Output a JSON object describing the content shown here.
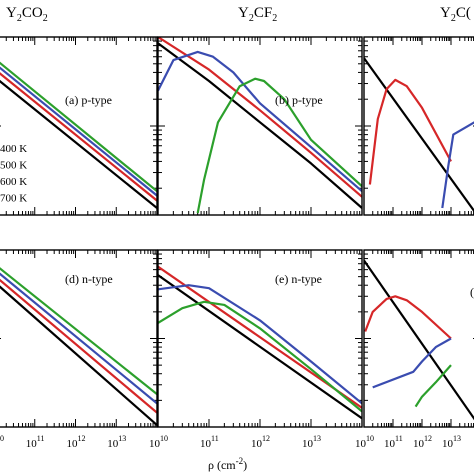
{
  "chart_data": [
    {
      "type": "line",
      "column_title": "Y2CO2",
      "panel_label": "(a) p-type",
      "xlog": true,
      "ylog": true,
      "xlim": [
        10000000000.0,
        100000000000000.0
      ],
      "ylim": [
        1,
        100
      ],
      "legend": {
        "position": "bottom-left",
        "entries": [
          "400 K",
          "500 K",
          "600 K",
          "700 K"
        ]
      },
      "series": [
        {
          "name": "400 K",
          "color": "#000000",
          "x": [
            10000000000.0,
            100000000000000.0
          ],
          "y": [
            36,
            1.2
          ]
        },
        {
          "name": "500 K",
          "color": "#d62728",
          "x": [
            10000000000.0,
            100000000000000.0
          ],
          "y": [
            44,
            1.45
          ]
        },
        {
          "name": "600 K",
          "color": "#3a4cb0",
          "x": [
            10000000000.0,
            100000000000000.0
          ],
          "y": [
            51,
            1.65
          ]
        },
        {
          "name": "700 K",
          "color": "#2ca02c",
          "x": [
            10000000000.0,
            100000000000000.0
          ],
          "y": [
            58,
            1.85
          ]
        }
      ]
    },
    {
      "type": "line",
      "column_title": "Y2CF2",
      "panel_label": "(b) p-type",
      "xlog": true,
      "ylog": true,
      "xlim": [
        10000000000.0,
        100000000000000.0
      ],
      "ylim": [
        1,
        100
      ],
      "series": [
        {
          "name": "400 K",
          "color": "#000000",
          "x": [
            10000000000.0,
            100000000000.0,
            1000000000000.0,
            10000000000000.0,
            100000000000000.0
          ],
          "y": [
            85,
            32,
            11,
            3.8,
            1.2
          ]
        },
        {
          "name": "500 K",
          "color": "#d62728",
          "x": [
            10000000000.0,
            100000000000.0,
            1000000000000.0,
            10000000000000.0,
            100000000000000.0
          ],
          "y": [
            100,
            43,
            15,
            5,
            1.6
          ]
        },
        {
          "name": "600 K",
          "color": "#3a4cb0",
          "x": [
            10000000000.0,
            20000000000.0,
            60000000000.0,
            120000000000.0,
            300000000000.0,
            1000000000000.0,
            10000000000000.0,
            100000000000000.0
          ],
          "y": [
            25,
            55,
            68,
            60,
            40,
            18,
            5.8,
            1.85
          ]
        },
        {
          "name": "700 K",
          "color": "#2ca02c",
          "x": [
            60000000000.0,
            80000000000.0,
            150000000000.0,
            400000000000.0,
            800000000000.0,
            1200000000000.0,
            3000000000000.0,
            10000000000000.0,
            100000000000000.0
          ],
          "y": [
            1.05,
            2.5,
            11,
            28,
            34,
            32,
            20,
            7,
            2.1
          ]
        }
      ]
    },
    {
      "type": "line",
      "column_title": "Y2C(",
      "panel_label": "",
      "xlog": true,
      "ylog": true,
      "xlim": [
        10000000000.0,
        100000000000000.0
      ],
      "ylim": [
        1,
        100
      ],
      "series": [
        {
          "name": "400 K",
          "color": "#000000",
          "x": [
            10000000000.0,
            100000000000000.0
          ],
          "y": [
            58,
            0.9
          ]
        },
        {
          "name": "500 K",
          "color": "#d62728",
          "x": [
            16000000000.0,
            30000000000.0,
            60000000000.0,
            120000000000.0,
            300000000000.0,
            1000000000000.0,
            10000000000000.0
          ],
          "y": [
            2.2,
            12,
            26,
            33,
            28,
            16,
            4
          ]
        },
        {
          "name": "600 K",
          "color": "#3a4cb0",
          "x": [
            5000000000000.0,
            8000000000000.0,
            12000000000000.0,
            100000000000000.0
          ],
          "y": [
            1.2,
            3.5,
            8,
            12
          ]
        }
      ]
    },
    {
      "type": "line",
      "panel_label": "(d) n-type",
      "xlog": true,
      "ylog": true,
      "xlim": [
        10000000000.0,
        100000000000000.0
      ],
      "ylim": [
        1,
        100
      ],
      "series": [
        {
          "name": "400 K",
          "color": "#000000",
          "x": [
            10000000000.0,
            100000000000000.0
          ],
          "y": [
            44,
            1.05
          ]
        },
        {
          "name": "500 K",
          "color": "#d62728",
          "x": [
            10000000000.0,
            100000000000000.0
          ],
          "y": [
            52,
            1.45
          ]
        },
        {
          "name": "600 K",
          "color": "#3a4cb0",
          "x": [
            10000000000.0,
            100000000000000.0
          ],
          "y": [
            61,
            1.85
          ]
        },
        {
          "name": "700 K",
          "color": "#2ca02c",
          "x": [
            10000000000.0,
            100000000000000.0
          ],
          "y": [
            70,
            2.35
          ]
        }
      ]
    },
    {
      "type": "line",
      "panel_label": "(e) n-type",
      "xlog": true,
      "ylog": true,
      "xlim": [
        10000000000.0,
        100000000000000.0
      ],
      "ylim": [
        1,
        100
      ],
      "series": [
        {
          "name": "400 K",
          "color": "#000000",
          "x": [
            10000000000.0,
            100000000000000.0
          ],
          "y": [
            52,
            1.25
          ]
        },
        {
          "name": "500 K",
          "color": "#d62728",
          "x": [
            10000000000.0,
            100000000000000.0
          ],
          "y": [
            65,
            1.65
          ]
        },
        {
          "name": "600 K",
          "color": "#3a4cb0",
          "x": [
            10000000000.0,
            40000000000.0,
            100000000000.0,
            1000000000000.0,
            10000000000000.0,
            100000000000000.0
          ],
          "y": [
            36,
            40,
            37,
            16,
            5.5,
            1.85
          ]
        },
        {
          "name": "700 K",
          "color": "#2ca02c",
          "x": [
            10000000000.0,
            30000000000.0,
            80000000000.0,
            200000000000.0,
            1000000000000.0,
            10000000000000.0,
            100000000000000.0
          ],
          "y": [
            15,
            22,
            26,
            24,
            13,
            4.5,
            1.5
          ]
        }
      ]
    },
    {
      "type": "line",
      "panel_label": "(",
      "xlog": true,
      "ylog": true,
      "xlim": [
        10000000000.0,
        100000000000000.0
      ],
      "ylim": [
        1,
        100
      ],
      "series": [
        {
          "name": "400 K",
          "color": "#000000",
          "x": [
            10000000000.0,
            100000000000000.0
          ],
          "y": [
            76,
            1.0
          ]
        },
        {
          "name": "500 K",
          "color": "#d62728",
          "x": [
            11000000000.0,
            20000000000.0,
            60000000000.0,
            120000000000.0,
            300000000000.0,
            1000000000000.0,
            10000000000000.0
          ],
          "y": [
            12,
            20,
            28,
            30,
            27,
            20,
            10
          ]
        },
        {
          "name": "600 K",
          "color": "#3a4cb0",
          "x": [
            20000000000.0,
            500000000000.0,
            1000000000000.0,
            3000000000000.0,
            10000000000000.0
          ],
          "y": [
            2.8,
            4.2,
            5.5,
            8,
            10
          ]
        },
        {
          "name": "700 K",
          "color": "#2ca02c",
          "x": [
            600000000000.0,
            1000000000000.0,
            3000000000000.0,
            10000000000000.0
          ],
          "y": [
            1.7,
            2.2,
            3.2,
            5
          ]
        }
      ]
    }
  ],
  "x_axis": {
    "label": "ρ (cm",
    "label_sup": "-2",
    "label_end": ")",
    "tick_base": "10",
    "tick_exps": [
      "10",
      "11",
      "12",
      "13"
    ]
  },
  "column_titles": [
    {
      "pre": "Y",
      "s1": "2",
      "mid": "CO",
      "s2": "2"
    },
    {
      "pre": "Y",
      "s1": "2",
      "mid": "CF",
      "s2": "2"
    },
    {
      "pre": "Y",
      "s1": "2",
      "mid": "C(",
      "s2": ""
    }
  ]
}
